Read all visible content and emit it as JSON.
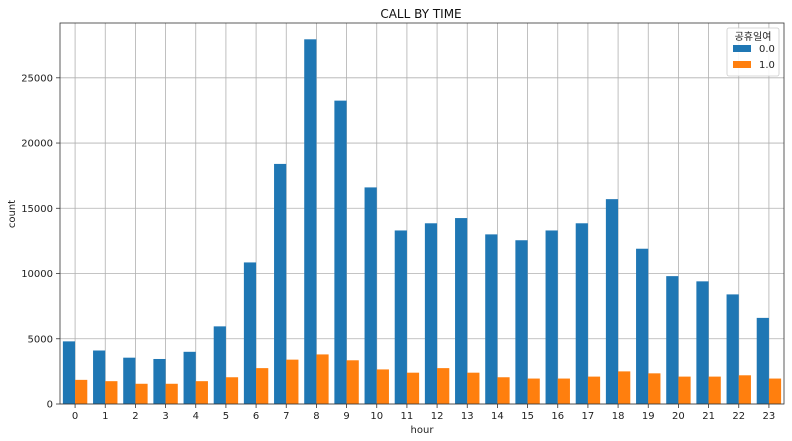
{
  "chart_data": {
    "type": "bar",
    "title": "CALL BY TIME",
    "xlabel": "hour",
    "ylabel": "count",
    "categories": [
      "0",
      "1",
      "2",
      "3",
      "4",
      "5",
      "6",
      "7",
      "8",
      "9",
      "10",
      "11",
      "12",
      "13",
      "14",
      "15",
      "16",
      "17",
      "18",
      "19",
      "20",
      "21",
      "22",
      "23"
    ],
    "series": [
      {
        "name": "0.0",
        "color": "#1f77b4",
        "values": [
          4800,
          4100,
          3550,
          3450,
          4000,
          5950,
          10850,
          18400,
          27950,
          23250,
          16600,
          13300,
          13850,
          14250,
          13000,
          12550,
          13300,
          13850,
          15700,
          11900,
          9800,
          9400,
          8400,
          6600
        ]
      },
      {
        "name": "1.0",
        "color": "#ff7f0e",
        "values": [
          1850,
          1750,
          1550,
          1550,
          1750,
          2050,
          2750,
          3400,
          3800,
          3350,
          2650,
          2400,
          2750,
          2400,
          2050,
          1950,
          1950,
          2100,
          2500,
          2350,
          2100,
          2100,
          2200,
          1950
        ]
      }
    ],
    "ylim": [
      0,
      29200
    ],
    "yticks": [
      0,
      5000,
      10000,
      15000,
      20000,
      25000
    ],
    "grid": true,
    "legend": {
      "title": "공휴일여",
      "placement": "top-right"
    }
  }
}
